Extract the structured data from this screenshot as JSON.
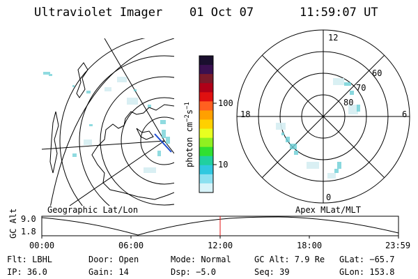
{
  "header": {
    "title": "Ultraviolet Imager",
    "date": "01 Oct 07",
    "time": "11:59:07 UT"
  },
  "colorbar": {
    "unit": "photon cm",
    "unit_exp1": "−2",
    "unit_mid": "s",
    "unit_exp2": "−1",
    "ticks": [
      "100",
      "10"
    ],
    "colors": [
      "#1a0f2e",
      "#3a1050",
      "#7a1a2a",
      "#b00018",
      "#e01010",
      "#ff6020",
      "#ffa000",
      "#ffd000",
      "#e8ff20",
      "#90f020",
      "#30e030",
      "#20d0a0",
      "#30c8e0",
      "#8ce0f0",
      "#d8f4fa"
    ]
  },
  "left_map": {
    "label": "Geographic Lat/Lon"
  },
  "right_map": {
    "label": "Apex MLat/MLT",
    "mlt_top": "12",
    "mlt_bottom": "0",
    "mlt_left": "18",
    "mlt_right": "6",
    "lat_labels": [
      "60",
      "70",
      "80"
    ]
  },
  "altitude": {
    "ylabel": "GC Alt",
    "y_top": "9.0",
    "y_bottom": "1.8",
    "x_ticks": [
      "00:00",
      "06:00",
      "12:00",
      "18:00",
      "23:59"
    ],
    "current_time_fraction": 0.5
  },
  "info": {
    "row1": [
      "Flt: LBHL",
      "Door: Open",
      "Mode: Normal",
      "GC Alt: 7.9 Re",
      "GLat: −65.7"
    ],
    "row2": [
      "IP: 36.0",
      "Gain: 14",
      "Dsp:    −5.0",
      "Seq: 39",
      "GLon: 153.8"
    ]
  }
}
